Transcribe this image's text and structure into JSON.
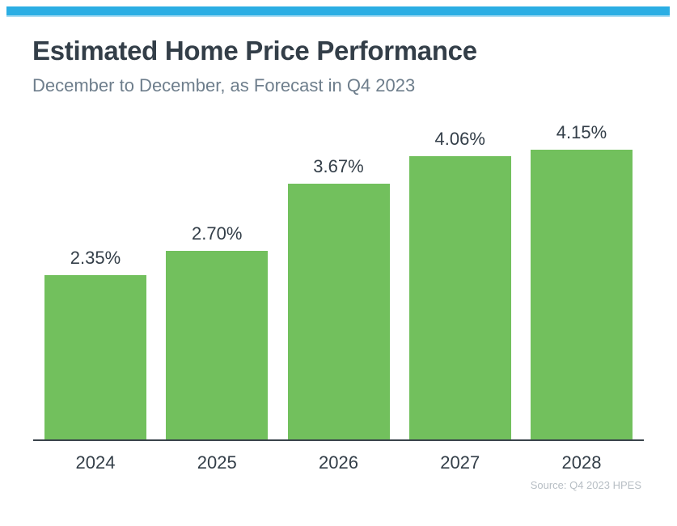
{
  "header": {
    "title": "Estimated Home Price Performance",
    "subtitle": "December to December, as Forecast in Q4 2023"
  },
  "footer": {
    "source": "Source: Q4 2023 HPES"
  },
  "colors": {
    "accent_blue_strip": "#2BAEE4",
    "bar_green": "#72C05D",
    "title_dark": "#333E48",
    "subtitle_gray": "#6E7E8C",
    "axis_dark": "#3A434B",
    "source_gray": "#B7BEC4"
  },
  "chart_data": {
    "type": "bar",
    "title": "Estimated Home Price Performance",
    "subtitle": "December to December, as Forecast in Q4 2023",
    "categories": [
      "2024",
      "2025",
      "2026",
      "2027",
      "2028"
    ],
    "values": [
      2.35,
      2.7,
      3.67,
      4.06,
      4.15
    ],
    "value_labels": [
      "2.35%",
      "2.70%",
      "3.67%",
      "4.06%",
      "4.15%"
    ],
    "xlabel": "",
    "ylabel": "",
    "ylim": [
      0,
      4.7
    ],
    "grid": false,
    "legend_position": "none",
    "bar_color": "#72C05D",
    "annotation_source": "Source: Q4 2023 HPES"
  }
}
